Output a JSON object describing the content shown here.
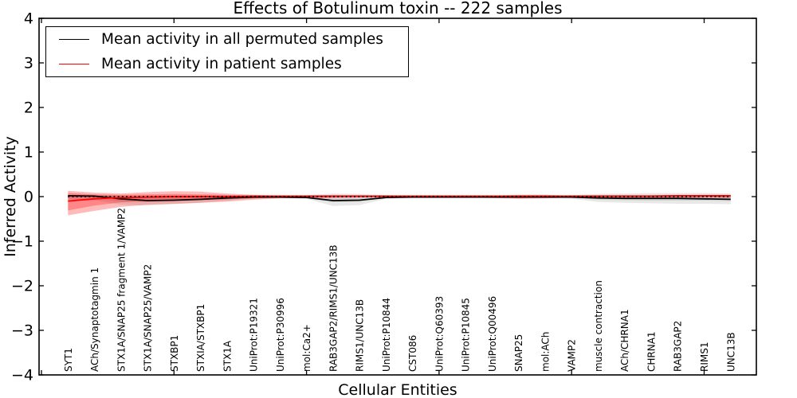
{
  "legend": {
    "items": [
      {
        "label": "Mean activity in all permuted samples",
        "color": "#000000"
      },
      {
        "label": "Mean activity in patient samples",
        "color": "#ff0000"
      }
    ]
  },
  "chart_data": {
    "type": "line",
    "title": "Effects of Botulinum toxin -- 222 samples",
    "xlabel": "Cellular Entities",
    "ylabel": "Inferred Activity",
    "ylim": [
      -4,
      4
    ],
    "yticks": [
      -4,
      -3,
      -2,
      -1,
      0,
      1,
      2,
      3,
      4
    ],
    "x_tick_values": [
      0,
      5,
      10,
      15,
      20,
      25
    ],
    "grid": false,
    "legend_position": "upper left",
    "categories": [
      "SYT1",
      "ACh/Synaptotagmin 1",
      "STX1A/SNAP25 fragment 1/VAMP2",
      "STX1A/SNAP25/VAMP2",
      "STXBP1",
      "STXIA/STXBP1",
      "STX1A",
      "UniProt:P19321",
      "UniProt:P30996",
      "mol:Ca2+",
      "RAB3GAP2/RIMS1/UNC13B",
      "RIMS1/UNC13B",
      "UniProt:P10844",
      "CST086",
      "UniProt:Q60393",
      "UniProt:P10845",
      "UniProt:Q00496",
      "SNAP25",
      "mol:ACh",
      "VAMP2",
      "muscle contraction",
      "ACh/CHRNA1",
      "CHRNA1",
      "RAB3GAP2",
      "RIMS1",
      "UNC13B"
    ],
    "zero_line": {
      "y": 0,
      "style": "dotted",
      "color": "#000000"
    },
    "series": [
      {
        "name": "Mean activity in all permuted samples",
        "color": "#000000",
        "values": [
          0.02,
          0.01,
          -0.05,
          -0.09,
          -0.08,
          -0.06,
          -0.03,
          -0.01,
          -0.01,
          -0.02,
          -0.09,
          -0.08,
          -0.02,
          -0.01,
          -0.01,
          -0.01,
          -0.01,
          -0.01,
          -0.01,
          -0.01,
          -0.03,
          -0.04,
          -0.04,
          -0.04,
          -0.05,
          -0.06
        ]
      },
      {
        "name": "Mean activity in patient samples",
        "color": "#ff0000",
        "values": [
          -0.1,
          -0.05,
          -0.02,
          -0.01,
          0.0,
          0.0,
          0.0,
          0.01,
          0.01,
          0.01,
          0.01,
          0.01,
          0.01,
          0.01,
          0.01,
          0.01,
          0.01,
          0.01,
          0.01,
          0.01,
          0.01,
          0.01,
          0.01,
          0.02,
          0.02,
          0.02
        ]
      }
    ],
    "bands": [
      {
        "name": "permuted-samples-range-outer",
        "color": "rgba(0,0,0,0.09)",
        "upper": [
          0.04,
          0.04,
          0.03,
          0.03,
          0.03,
          0.03,
          0.03,
          0.02,
          0.02,
          0.03,
          0.07,
          0.06,
          0.03,
          0.02,
          0.02,
          0.02,
          0.02,
          0.02,
          0.02,
          0.03,
          0.06,
          0.07,
          0.08,
          0.08,
          0.08,
          0.07
        ],
        "lower": [
          -0.06,
          -0.08,
          -0.18,
          -0.2,
          -0.17,
          -0.14,
          -0.09,
          -0.04,
          -0.03,
          -0.05,
          -0.21,
          -0.19,
          -0.05,
          -0.03,
          -0.03,
          -0.03,
          -0.03,
          -0.03,
          -0.03,
          -0.05,
          -0.12,
          -0.14,
          -0.15,
          -0.16,
          -0.16,
          -0.17
        ]
      },
      {
        "name": "permuted-samples-range-inner",
        "color": "rgba(0,0,0,0.09)",
        "upper": [
          0.03,
          0.03,
          0.02,
          0.02,
          0.02,
          0.02,
          0.02,
          0.01,
          0.01,
          0.02,
          0.04,
          0.03,
          0.02,
          0.01,
          0.01,
          0.01,
          0.01,
          0.01,
          0.01,
          0.02,
          0.03,
          0.04,
          0.04,
          0.04,
          0.04,
          0.04
        ],
        "lower": [
          -0.04,
          -0.05,
          -0.11,
          -0.12,
          -0.1,
          -0.08,
          -0.06,
          -0.03,
          -0.02,
          -0.03,
          -0.13,
          -0.11,
          -0.03,
          -0.02,
          -0.02,
          -0.02,
          -0.02,
          -0.02,
          -0.02,
          -0.03,
          -0.07,
          -0.08,
          -0.09,
          -0.09,
          -0.09,
          -0.1
        ]
      },
      {
        "name": "patient-samples-range-outer",
        "color": "rgba(255,0,0,0.27)",
        "upper": [
          0.13,
          0.09,
          0.07,
          0.1,
          0.12,
          0.11,
          0.07,
          0.04,
          0.02,
          0.02,
          0.02,
          0.01,
          0.01,
          0.01,
          0.01,
          0.01,
          0.02,
          0.04,
          0.04,
          0.02,
          0.02,
          0.02,
          0.02,
          0.02,
          0.03,
          0.03
        ],
        "lower": [
          -0.42,
          -0.32,
          -0.23,
          -0.18,
          -0.16,
          -0.14,
          -0.11,
          -0.07,
          -0.04,
          -0.03,
          -0.03,
          -0.02,
          -0.02,
          -0.02,
          -0.02,
          -0.02,
          -0.03,
          -0.05,
          -0.04,
          -0.02,
          -0.02,
          -0.02,
          -0.02,
          -0.02,
          -0.02,
          -0.03
        ]
      },
      {
        "name": "patient-samples-range-inner",
        "color": "rgba(255,0,0,0.27)",
        "upper": [
          0.08,
          0.05,
          0.04,
          0.05,
          0.06,
          0.05,
          0.04,
          0.02,
          0.01,
          0.01,
          0.01,
          0.01,
          0.01,
          0.01,
          0.01,
          0.01,
          0.01,
          0.02,
          0.02,
          0.01,
          0.01,
          0.01,
          0.01,
          0.01,
          0.02,
          0.02
        ],
        "lower": [
          -0.31,
          -0.2,
          -0.13,
          -0.1,
          -0.09,
          -0.08,
          -0.06,
          -0.04,
          -0.02,
          -0.02,
          -0.02,
          -0.01,
          -0.01,
          -0.01,
          -0.01,
          -0.01,
          -0.02,
          -0.03,
          -0.02,
          -0.01,
          -0.01,
          -0.01,
          -0.01,
          -0.01,
          -0.01,
          -0.02
        ]
      }
    ]
  }
}
